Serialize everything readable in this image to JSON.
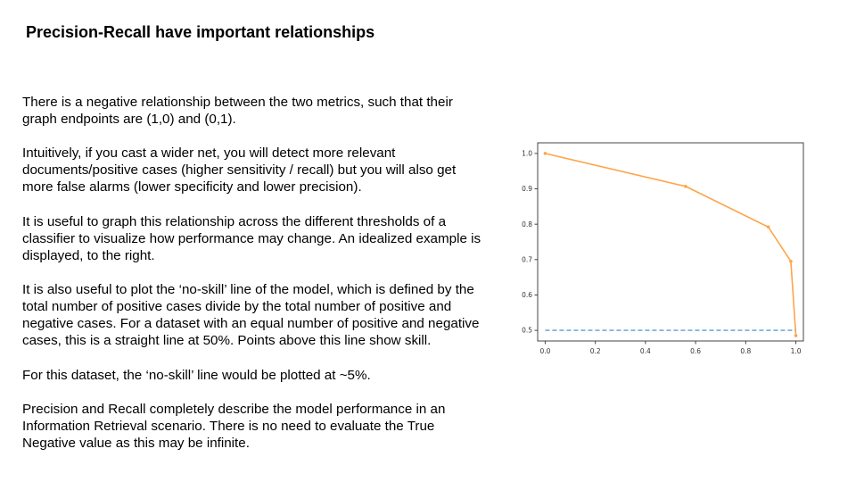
{
  "slide": {
    "title": "Precision-Recall have important relationships",
    "paragraphs": [
      "There is a negative relationship between the two metrics, such that their graph endpoints are (1,0) and (0,1).",
      "Intuitively, if you cast a wider net, you will detect more relevant documents/positive cases (higher sensitivity / recall) but you will also get more false alarms (lower specificity and lower precision).",
      "It is useful to graph this relationship across the different thresholds of a classifier to visualize how performance may change.  An idealized example is displayed, to the right.",
      "It is also useful to plot the ‘no-skill’ line of the model, which is defined by the total number of positive cases divide by the total number of positive and negative cases.  For a dataset with an equal number of positive and negative cases, this is a straight line at 50%.  Points above this line show skill.",
      "For this dataset, the ‘no-skill’ line would be plotted at ~5%.",
      "Precision and Recall completely describe the model performance in an Information Retrieval scenario.  There is no need to evaluate the True Negative value as this may be infinite."
    ]
  },
  "chart_data": {
    "type": "line",
    "title": "",
    "xlabel": "",
    "ylabel": "",
    "xlim": [
      -0.03,
      1.03
    ],
    "ylim": [
      0.47,
      1.03
    ],
    "xticks": [
      "0.0",
      "0.2",
      "0.4",
      "0.6",
      "0.8",
      "1.0"
    ],
    "yticks": [
      "0.5",
      "0.6",
      "0.7",
      "0.8",
      "0.9",
      "1.0"
    ],
    "grid": false,
    "series": [
      {
        "style": "solid-with-markers",
        "color": "#ffa449",
        "x": [
          0.0,
          0.56,
          0.89,
          0.98,
          1.0
        ],
        "y": [
          1.0,
          0.907,
          0.792,
          0.695,
          0.485
        ]
      },
      {
        "style": "dashed",
        "color": "#5b9bd5",
        "x": [
          0.0,
          1.0
        ],
        "y": [
          0.5,
          0.5
        ]
      }
    ]
  }
}
